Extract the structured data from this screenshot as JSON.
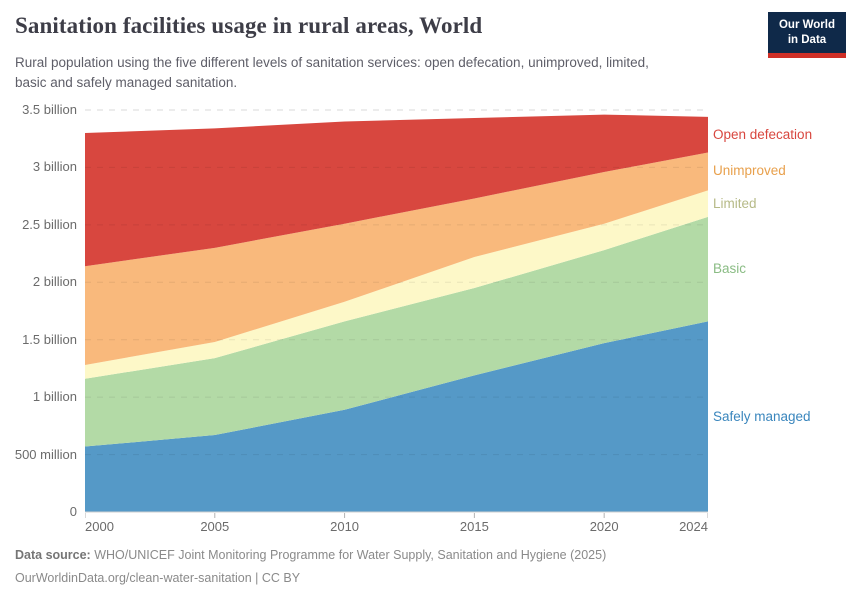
{
  "header": {
    "title": "Sanitation facilities usage in rural areas, World",
    "subtitle": "Rural population using the five different levels of sanitation services: open defecation, unimproved, limited,\nbasic and safely managed sanitation.",
    "logo": {
      "line1": "Our World",
      "line2": "in Data",
      "bg_color": "#0f2949",
      "stripe_color": "#cf2f27"
    }
  },
  "chart_data": {
    "type": "area",
    "stacked": true,
    "title": "Sanitation facilities usage in rural areas, World",
    "unit": "people",
    "x": [
      2000,
      2005,
      2010,
      2015,
      2020,
      2024
    ],
    "series": [
      {
        "name": "Safely managed",
        "color": "#5599c7",
        "label_color": "#3a86bd",
        "values_billions": [
          0.57,
          0.67,
          0.89,
          1.19,
          1.47,
          1.66
        ]
      },
      {
        "name": "Basic",
        "color": "#b3daa6",
        "label_color": "#8abc84",
        "values_billions": [
          0.59,
          0.67,
          0.77,
          0.76,
          0.81,
          0.91
        ]
      },
      {
        "name": "Limited",
        "color": "#fdf8c8",
        "label_color": "#b6ba87",
        "values_billions": [
          0.12,
          0.14,
          0.17,
          0.27,
          0.23,
          0.23
        ]
      },
      {
        "name": "Unimproved",
        "color": "#f9b97c",
        "label_color": "#e8a04c",
        "values_billions": [
          0.86,
          0.82,
          0.68,
          0.51,
          0.45,
          0.33
        ]
      },
      {
        "name": "Open defecation",
        "color": "#d8473f",
        "label_color": "#d8473f",
        "values_billions": [
          1.16,
          1.04,
          0.89,
          0.7,
          0.5,
          0.31
        ]
      }
    ],
    "ylim": [
      0,
      3.5
    ],
    "ytick_values": [
      0,
      0.5,
      1,
      1.5,
      2,
      2.5,
      3,
      3.5
    ],
    "ytick_labels": [
      "0",
      "500 million",
      "1 billion",
      "1.5 billion",
      "2 billion",
      "2.5 billion",
      "3 billion",
      "3.5 billion"
    ],
    "xticks": [
      2000,
      2005,
      2010,
      2015,
      2020,
      2024
    ],
    "grid": "dashed horizontal",
    "legend_position": "right of plot, aligned to band centers"
  },
  "footer": {
    "source_label": "Data source:",
    "source_text": "WHO/UNICEF Joint Monitoring Programme for Water Supply, Sanitation and Hygiene (2025)",
    "link_line": "OurWorldinData.org/clean-water-sanitation | CC BY"
  }
}
